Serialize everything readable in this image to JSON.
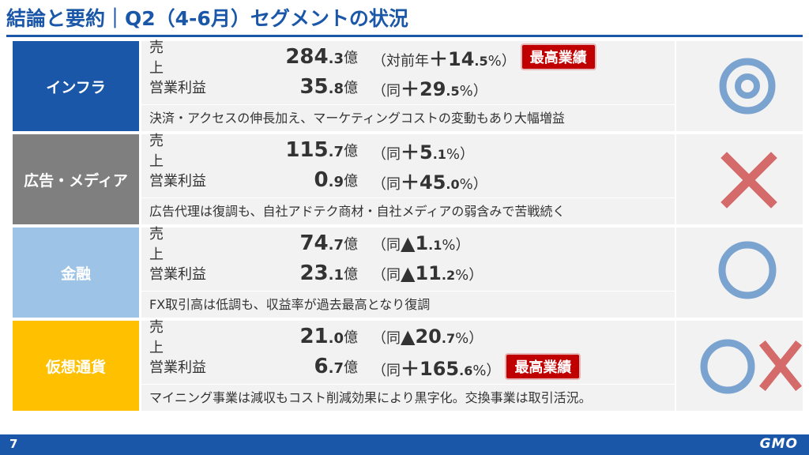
{
  "title": "結論と要約｜Q2（4-6月）セグメントの状況",
  "badge_text": "最高業績",
  "colors": {
    "brand": "#1a57a8",
    "badge": "#c00000",
    "eval": "#7ba3cf",
    "cross": "#d46a6a"
  },
  "segments": [
    {
      "label": "インフラ",
      "color": "#1a57a8",
      "revenue": {
        "name": "売　上",
        "int": "284",
        "dec": ".3",
        "unit": "億",
        "cmp_prefix": "（対前年",
        "cmp_sign": "＋",
        "cmp_int": "14",
        "cmp_dec": ".5",
        "cmp_suffix": "%）"
      },
      "profit": {
        "name": "営業利益",
        "int": "35",
        "dec": ".8",
        "unit": "億",
        "cmp_prefix": "（同",
        "cmp_sign": "＋",
        "cmp_int": "29",
        "cmp_dec": ".5",
        "cmp_suffix": "%）"
      },
      "note": "決済・アクセスの伸長加え、マーケティングコストの変動もあり大幅増益",
      "evaluation": "double-circle-icon"
    },
    {
      "label": "広告・メディア",
      "color": "#7f7f7f",
      "revenue": {
        "name": "売　上",
        "int": "115",
        "dec": ".7",
        "unit": "億",
        "cmp_prefix": "（同",
        "cmp_sign": "＋",
        "cmp_int": "5",
        "cmp_dec": ".1",
        "cmp_suffix": "%）"
      },
      "profit": {
        "name": "営業利益",
        "int": "0",
        "dec": ".9",
        "unit": "億",
        "cmp_prefix": "（同",
        "cmp_sign": "＋",
        "cmp_int": "45",
        "cmp_dec": ".0",
        "cmp_suffix": "%）"
      },
      "note": "広告代理は復調も、自社アドテク商材・自社メディアの弱含みで苦戦続く",
      "evaluation": "cross-icon"
    },
    {
      "label": "金融",
      "color": "#9dc3e6",
      "revenue": {
        "name": "売　上",
        "int": "74",
        "dec": ".7",
        "unit": "億",
        "cmp_prefix": "（同",
        "cmp_sign": "▲",
        "cmp_int": "1",
        "cmp_dec": ".1",
        "cmp_suffix": "%）"
      },
      "profit": {
        "name": "営業利益",
        "int": "23",
        "dec": ".1",
        "unit": "億",
        "cmp_prefix": "（同",
        "cmp_sign": "▲",
        "cmp_int": "11",
        "cmp_dec": ".2",
        "cmp_suffix": "%）"
      },
      "note": "FX取引高は低調も、収益率が過去最高となり復調",
      "evaluation": "circle-icon"
    },
    {
      "label": "仮想通貨",
      "color": "#ffc000",
      "revenue": {
        "name": "売　上",
        "int": "21",
        "dec": ".0",
        "unit": "億",
        "cmp_prefix": "（同",
        "cmp_sign": "▲",
        "cmp_int": "20",
        "cmp_dec": ".7",
        "cmp_suffix": "%）"
      },
      "profit": {
        "name": "営業利益",
        "int": "6",
        "dec": ".7",
        "unit": "億",
        "cmp_prefix": "（同",
        "cmp_sign": "＋",
        "cmp_int": "165",
        "cmp_dec": ".6",
        "cmp_suffix": "%）"
      },
      "note": "マイニング事業は減収もコスト削減効果により黒字化。交換事業は取引活況。",
      "evaluation": "circle-and-cross-icon"
    }
  ],
  "footer": {
    "page": "7",
    "logo": "GMO"
  }
}
